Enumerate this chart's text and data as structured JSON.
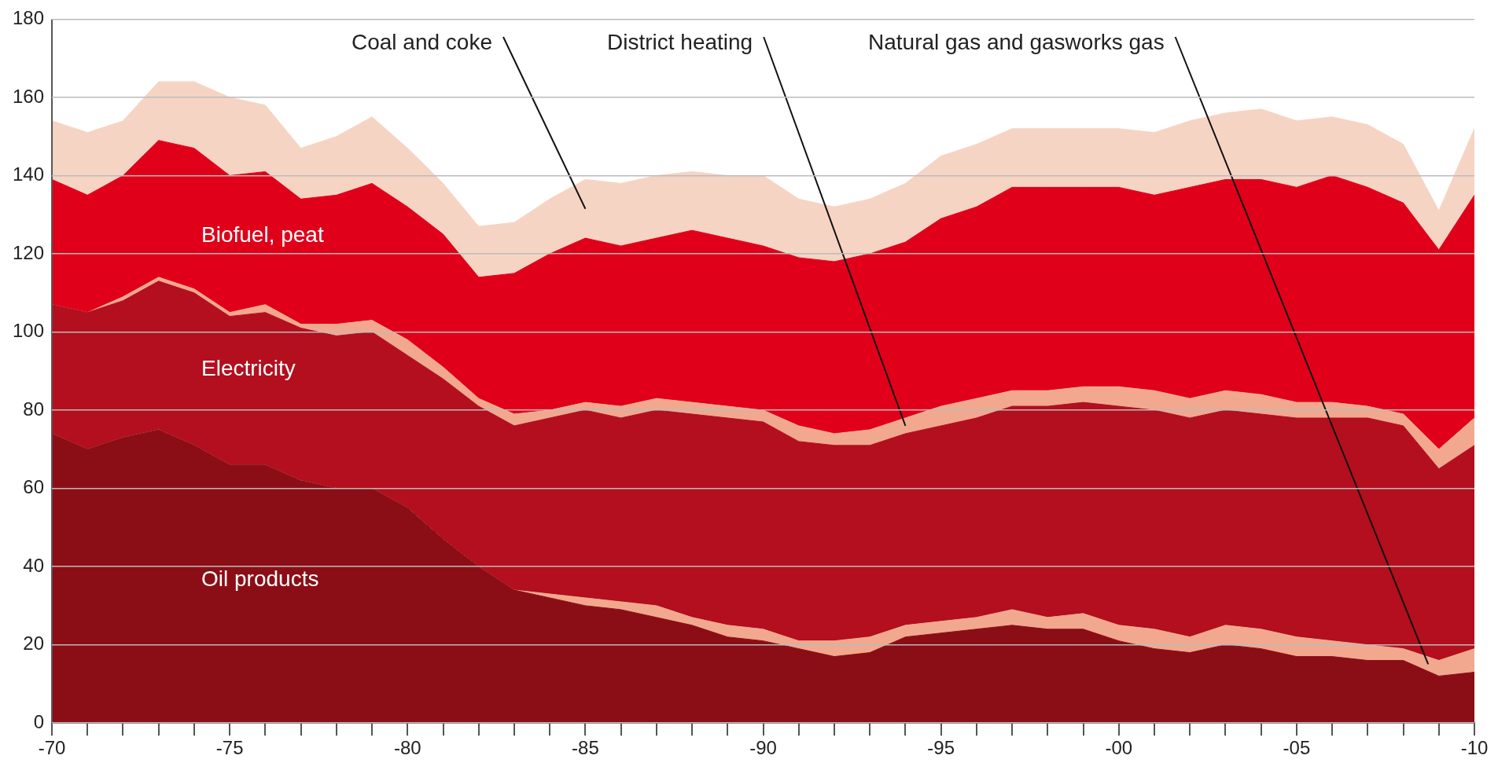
{
  "chart_data": {
    "type": "area",
    "stacked": true,
    "categories": [
      "-70",
      null,
      null,
      null,
      null,
      "-75",
      null,
      null,
      null,
      null,
      "-80",
      null,
      null,
      null,
      null,
      "-85",
      null,
      null,
      null,
      null,
      "-90",
      null,
      null,
      null,
      null,
      "-95",
      null,
      null,
      null,
      null,
      "-00",
      null,
      null,
      null,
      null,
      "-05",
      null,
      null,
      null,
      null,
      "-10"
    ],
    "ylim": [
      0,
      180
    ],
    "yticks": [
      0,
      20,
      40,
      60,
      80,
      100,
      120,
      140,
      160,
      180
    ],
    "grid": "y",
    "legend": false,
    "series": [
      {
        "name": "Oil products",
        "color": "#8b0e16",
        "values": [
          74,
          70,
          73,
          75,
          71,
          66,
          66,
          62,
          60,
          60,
          55,
          47,
          40,
          34,
          32,
          30,
          29,
          27,
          25,
          22,
          21,
          19,
          17,
          18,
          22,
          23,
          24,
          25,
          24,
          24,
          21,
          19,
          18,
          20,
          19,
          17,
          17,
          16,
          16,
          12,
          13
        ]
      },
      {
        "name": "Natural gas and gasworks gas",
        "color": "#f2a88e",
        "values": [
          0,
          0,
          0,
          0,
          0,
          0,
          0,
          0,
          0,
          0,
          0,
          0,
          0,
          0,
          1,
          2,
          2,
          3,
          2,
          3,
          3,
          2,
          4,
          4,
          3,
          3,
          3,
          4,
          3,
          4,
          4,
          5,
          4,
          5,
          5,
          5,
          4,
          4,
          3,
          4,
          6
        ]
      },
      {
        "name": "Electricity",
        "color": "#b30f1e",
        "values": [
          33,
          35,
          35,
          38,
          39,
          38,
          39,
          39,
          39,
          40,
          39,
          41,
          41,
          42,
          45,
          48,
          47,
          50,
          52,
          53,
          53,
          51,
          50,
          49,
          49,
          50,
          51,
          52,
          54,
          54,
          56,
          56,
          56,
          55,
          55,
          56,
          57,
          58,
          57,
          49,
          52
        ]
      },
      {
        "name": "District heating",
        "color": "#f2a88e",
        "values": [
          0,
          0,
          1,
          1,
          1,
          1,
          2,
          1,
          3,
          3,
          4,
          3,
          2,
          3,
          2,
          2,
          3,
          3,
          3,
          3,
          3,
          4,
          3,
          4,
          4,
          5,
          5,
          4,
          4,
          4,
          5,
          5,
          5,
          5,
          5,
          4,
          4,
          3,
          3,
          5,
          7
        ]
      },
      {
        "name": "Biofuel, peat",
        "color": "#e0001a",
        "values": [
          32,
          30,
          31,
          35,
          36,
          35,
          34,
          32,
          33,
          35,
          34,
          34,
          31,
          36,
          40,
          42,
          41,
          41,
          44,
          43,
          42,
          43,
          44,
          45,
          45,
          48,
          49,
          52,
          52,
          51,
          51,
          50,
          54,
          54,
          55,
          55,
          58,
          56,
          54,
          51,
          57
        ]
      },
      {
        "name": "Coal and coke",
        "color": "#f6d4c4",
        "values": [
          15,
          16,
          14,
          15,
          17,
          20,
          17,
          13,
          15,
          17,
          15,
          13,
          13,
          13,
          14,
          15,
          16,
          16,
          15,
          16,
          18,
          15,
          14,
          14,
          15,
          16,
          16,
          15,
          15,
          15,
          15,
          16,
          17,
          17,
          18,
          17,
          15,
          16,
          15,
          10,
          17
        ]
      }
    ]
  }
}
